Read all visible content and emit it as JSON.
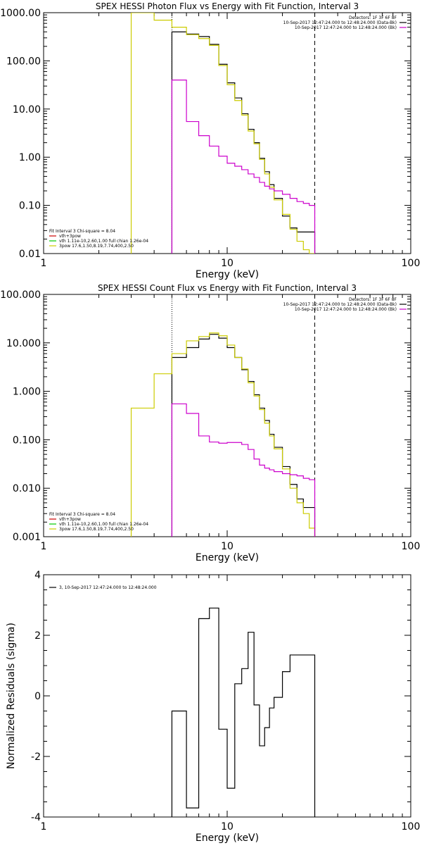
{
  "chart_data": [
    {
      "type": "line",
      "title": "SPEX HESSI Photon Flux vs Energy with Fit Function, Interval 3",
      "xlabel": "Energy (keV)",
      "ylabel": "",
      "xscale": "log",
      "yscale": "log",
      "xlim": [
        1,
        100
      ],
      "ylim": [
        0.01,
        1000
      ],
      "xticks": [
        "1",
        "10",
        "100"
      ],
      "yticks": [
        "0.01",
        "0.10",
        "1.00",
        "10.00",
        "100.00",
        "1000.00"
      ],
      "vlines": [
        {
          "x": 5.0,
          "style": "dotted",
          "color": "#000000"
        },
        {
          "x": 30.0,
          "style": "dashed",
          "color": "#000000"
        }
      ],
      "legend_top_right": [
        {
          "label": "Detectors: 1F 3F 6F 8F",
          "color": ""
        },
        {
          "label": "10-Sep-2017 12:47:24.000 to 12:48:24.000 (Data-Bk)",
          "color": "#000000"
        },
        {
          "label": "10-Sep-2017 12:47:24.000 to 12:48:24.000 (Bk)",
          "color": "#cc00cc"
        }
      ],
      "legend_bottom_left": {
        "header": "Fit Interval 3   Chi-square = 8.04",
        "items": [
          {
            "label": "vth+3pow",
            "color": "#cc0000"
          },
          {
            "label": "vth 1.11e-10,2.60,1.00  full chian 1.26e-04",
            "color": "#00cc00"
          },
          {
            "label": "3pow 17.6,1.50,8.19,7.74,400,2.50",
            "color": "#cccc00"
          }
        ]
      },
      "series": [
        {
          "name": "10-Sep-2017 12:47:24.000 to 12:48:24.000 (Data-Bk)",
          "color": "#000000",
          "edges": [
            5,
            6,
            7,
            8,
            9,
            10,
            11,
            12,
            13,
            14,
            15,
            16,
            17,
            18,
            20,
            22,
            24,
            26,
            28,
            30
          ],
          "values": [
            400,
            360,
            320,
            220,
            85,
            35,
            17,
            8,
            3.8,
            2.0,
            0.95,
            0.5,
            0.27,
            0.14,
            0.06,
            0.034,
            0.028,
            0.028,
            0.028
          ]
        },
        {
          "name": "vth+3pow",
          "color": "#cccc00",
          "edges": [
            3,
            4,
            5,
            6,
            7,
            8,
            9,
            10,
            11,
            12,
            13,
            14,
            15,
            16,
            17,
            18,
            20,
            22,
            24,
            26,
            28,
            30
          ],
          "values": [
            1000,
            700,
            500,
            350,
            290,
            210,
            80,
            32,
            15,
            7.5,
            3.5,
            1.9,
            0.9,
            0.45,
            0.24,
            0.13,
            0.065,
            0.032,
            0.018,
            0.012,
            0.01
          ]
        },
        {
          "name": "10-Sep-2017 12:47:24.000 to 12:48:24.000 (Bk)",
          "color": "#cc00cc",
          "edges": [
            5,
            6,
            7,
            8,
            9,
            10,
            11,
            12,
            13,
            14,
            15,
            16,
            17,
            18,
            20,
            22,
            24,
            26,
            28,
            30
          ],
          "values": [
            40,
            5.5,
            2.8,
            1.7,
            1.05,
            0.75,
            0.65,
            0.55,
            0.45,
            0.38,
            0.3,
            0.25,
            0.22,
            0.2,
            0.17,
            0.14,
            0.12,
            0.11,
            0.1
          ]
        }
      ]
    },
    {
      "type": "line",
      "title": "SPEX HESSI Count Flux vs Energy with Fit Function, Interval 3",
      "xlabel": "Energy (keV)",
      "ylabel": "",
      "xscale": "log",
      "yscale": "log",
      "xlim": [
        1,
        100
      ],
      "ylim": [
        0.001,
        100
      ],
      "xticks": [
        "1",
        "10",
        "100"
      ],
      "yticks": [
        "0.001",
        "0.010",
        "0.100",
        "1.000",
        "10.000",
        "100.000"
      ],
      "vlines": [
        {
          "x": 5.0,
          "style": "dotted",
          "color": "#000000"
        },
        {
          "x": 30.0,
          "style": "dashed",
          "color": "#000000"
        }
      ],
      "legend_top_right": [
        {
          "label": "Detectors: 1F 3F 6F 8F",
          "color": ""
        },
        {
          "label": "10-Sep-2017 12:47:24.000 to 12:48:24.000 (Data-Bk)",
          "color": "#000000"
        },
        {
          "label": "10-Sep-2017 12:47:24.000 to 12:48:24.000 (Bk)",
          "color": "#cc00cc"
        }
      ],
      "legend_bottom_left": {
        "header": "Fit Interval 3   Chi-square = 8.04",
        "items": [
          {
            "label": "vth+3pow",
            "color": "#cc0000"
          },
          {
            "label": "vth 1.11e-10,2.60,1.00  full chian 1.26e-04",
            "color": "#00cc00"
          },
          {
            "label": "3pow 17.6,1.50,8.19,7.74,400,2.50",
            "color": "#cccc00"
          }
        ]
      },
      "series": [
        {
          "name": "10-Sep-2017 12:47:24.000 to 12:48:24.000 (Data-Bk)",
          "color": "#000000",
          "edges": [
            5,
            6,
            7,
            8,
            9,
            10,
            11,
            12,
            13,
            14,
            15,
            16,
            17,
            18,
            20,
            22,
            24,
            26,
            28,
            30
          ],
          "values": [
            5.0,
            8.0,
            12.0,
            15.0,
            12.5,
            8.0,
            5.0,
            2.8,
            1.6,
            0.85,
            0.45,
            0.25,
            0.13,
            0.07,
            0.028,
            0.012,
            0.006,
            0.004,
            0.004
          ]
        },
        {
          "name": "vth+3pow",
          "color": "#cccc00",
          "edges": [
            3,
            4,
            5,
            6,
            7,
            8,
            9,
            10,
            11,
            12,
            13,
            14,
            15,
            16,
            17,
            18,
            20,
            22,
            24,
            26,
            28,
            30
          ],
          "values": [
            0.45,
            2.3,
            6.0,
            11.0,
            13.5,
            16.0,
            14.0,
            9.0,
            5.0,
            2.9,
            1.5,
            0.8,
            0.42,
            0.22,
            0.12,
            0.065,
            0.025,
            0.01,
            0.005,
            0.003,
            0.0015
          ]
        },
        {
          "name": "10-Sep-2017 12:47:24.000 to 12:48:24.000 (Bk)",
          "color": "#cc00cc",
          "edges": [
            5,
            6,
            7,
            8,
            9,
            10,
            11,
            12,
            13,
            14,
            15,
            16,
            17,
            18,
            20,
            22,
            24,
            26,
            28,
            30
          ],
          "values": [
            0.55,
            0.35,
            0.12,
            0.09,
            0.085,
            0.088,
            0.088,
            0.08,
            0.063,
            0.04,
            0.03,
            0.026,
            0.024,
            0.022,
            0.02,
            0.019,
            0.018,
            0.016,
            0.015
          ]
        }
      ]
    },
    {
      "type": "line",
      "title": "",
      "xlabel": "Energy (keV)",
      "ylabel": "Normalized Residuals (sigma)",
      "xscale": "log",
      "yscale": "linear",
      "xlim": [
        1,
        100
      ],
      "ylim": [
        -4,
        4
      ],
      "xticks": [
        "1",
        "10",
        "100"
      ],
      "yticks": [
        "-4",
        "-2",
        "0",
        "2",
        "4"
      ],
      "legend_top_left": [
        {
          "label": "3, 10-Sep-2017 12:47:24.000 to 12:48:24.000",
          "color": "#000000"
        }
      ],
      "series": [
        {
          "name": "3, 10-Sep-2017 12:47:24.000 to 12:48:24.000",
          "color": "#000000",
          "edges": [
            5,
            6,
            7,
            8,
            9,
            10,
            11,
            12,
            13,
            14,
            15,
            16,
            17,
            18,
            20,
            22,
            24,
            26,
            28,
            30
          ],
          "values": [
            -0.5,
            -3.7,
            2.55,
            2.9,
            -1.1,
            -3.05,
            0.4,
            0.9,
            2.1,
            -0.3,
            -1.65,
            -1.05,
            -0.4,
            -0.05,
            0.8,
            1.35,
            1.35,
            1.35,
            1.35
          ]
        }
      ]
    }
  ]
}
